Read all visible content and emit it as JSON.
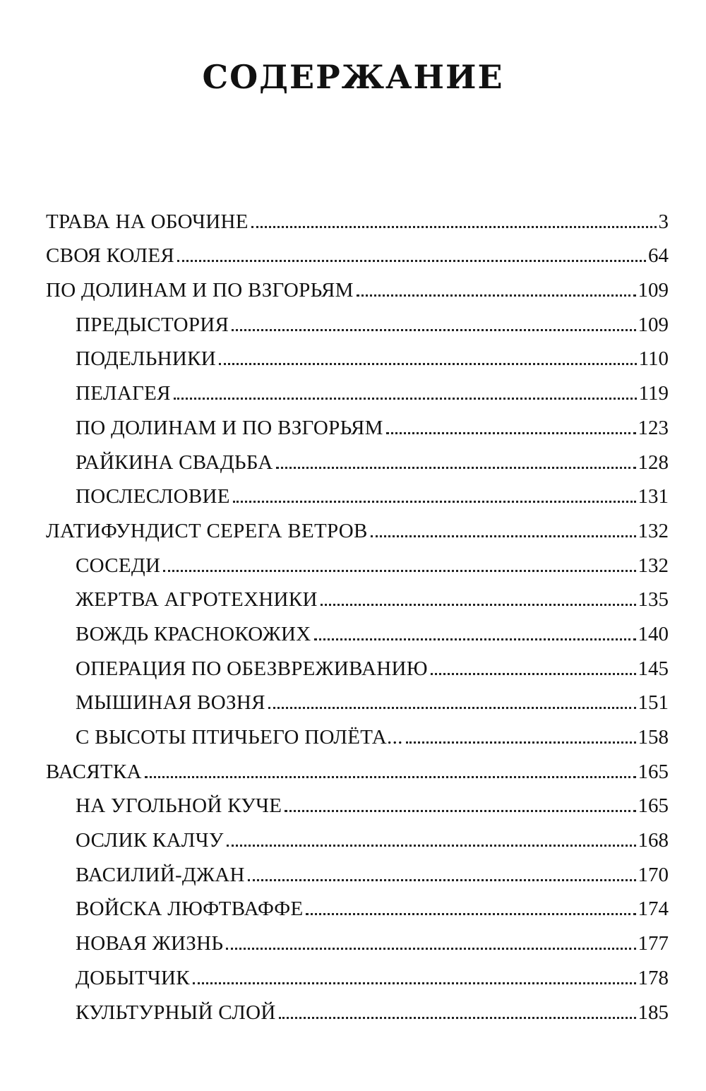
{
  "title": "СОДЕРЖАНИЕ",
  "entries": [
    {
      "label": "ТРАВА НА ОБОЧИНЕ",
      "page": "3",
      "level": 1
    },
    {
      "label": "СВОЯ КОЛЕЯ",
      "page": "64",
      "level": 1
    },
    {
      "label": "ПО ДОЛИНАМ И ПО ВЗГОРЬЯМ",
      "page": "109",
      "level": 1
    },
    {
      "label": "ПРЕДЫСТОРИЯ",
      "page": "109",
      "level": 2
    },
    {
      "label": "ПОДЕЛЬНИКИ",
      "page": "110",
      "level": 2
    },
    {
      "label": "ПЕЛАГЕЯ",
      "page": "119",
      "level": 2
    },
    {
      "label": "ПО ДОЛИНАМ И ПО ВЗГОРЬЯМ",
      "page": "123",
      "level": 2
    },
    {
      "label": "РАЙКИНА СВАДЬБА",
      "page": "128",
      "level": 2
    },
    {
      "label": "ПОСЛЕСЛОВИЕ",
      "page": "131",
      "level": 2
    },
    {
      "label": "ЛАТИФУНДИСТ СЕРЕГА ВЕТРОВ",
      "page": "132",
      "level": 1
    },
    {
      "label": "СОСЕДИ",
      "page": "132",
      "level": 2
    },
    {
      "label": "ЖЕРТВА АГРОТЕХНИКИ",
      "page": "135",
      "level": 2
    },
    {
      "label": "ВОЖДЬ КРАСНОКОЖИХ",
      "page": "140",
      "level": 2
    },
    {
      "label": "ОПЕРАЦИЯ ПО ОБЕЗВРЕЖИВАНИЮ",
      "page": "145",
      "level": 2
    },
    {
      "label": "МЫШИНАЯ ВОЗНЯ",
      "page": "151",
      "level": 2
    },
    {
      "label": "С ВЫСОТЫ ПТИЧЬЕГО ПОЛЁТА...",
      "page": "158",
      "level": 2
    },
    {
      "label": "ВАСЯТКА",
      "page": "165",
      "level": 1
    },
    {
      "label": "НА УГОЛЬНОЙ КУЧЕ",
      "page": "165",
      "level": 2
    },
    {
      "label": "ОСЛИК КАЛЧУ",
      "page": "168",
      "level": 2
    },
    {
      "label": "ВАСИЛИЙ-ДЖАН",
      "page": "170",
      "level": 2
    },
    {
      "label": "ВОЙСКА ЛЮФТВАФФЕ",
      "page": "174",
      "level": 2
    },
    {
      "label": "НОВАЯ ЖИЗНЬ",
      "page": "177",
      "level": 2
    },
    {
      "label": "ДОБЫТЧИК",
      "page": "178",
      "level": 2
    },
    {
      "label": "КУЛЬТУРНЫЙ СЛОЙ",
      "page": "185",
      "level": 2
    }
  ]
}
